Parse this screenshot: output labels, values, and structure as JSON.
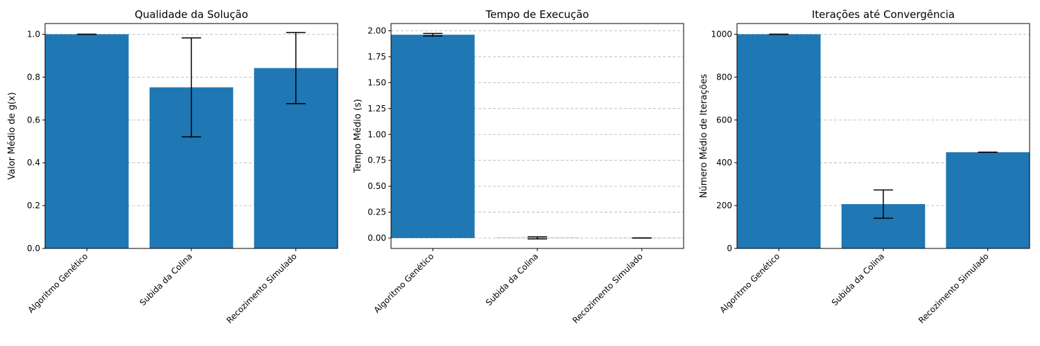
{
  "chart_data": [
    {
      "type": "bar",
      "title": "Qualidade da Solução",
      "xlabel": "",
      "ylabel": "Valor Médio de g(x)",
      "categories": [
        "Algoritmo Genético",
        "Subida da Colina",
        "Recozimento Simulado"
      ],
      "values": [
        1.0,
        0.752,
        0.842
      ],
      "errors": [
        0.0,
        0.231,
        0.166
      ],
      "ylim": [
        0,
        1.05
      ],
      "yticks": [
        "0.0",
        "0.2",
        "0.4",
        "0.6",
        "0.8",
        "1.0"
      ],
      "color": "#1f77b4",
      "grid": "y-dashed"
    },
    {
      "type": "bar",
      "title": "Tempo de Execução",
      "xlabel": "",
      "ylabel": "Tempo Médio (s)",
      "categories": [
        "Algoritmo Genético",
        "Subida da Colina",
        "Recozimento Simulado"
      ],
      "values": [
        1.962,
        0.002,
        0.001
      ],
      "errors": [
        0.012,
        0.01,
        0.0
      ],
      "ylim": [
        -0.1,
        2.07
      ],
      "yticks": [
        "0.00",
        "0.25",
        "0.50",
        "0.75",
        "1.00",
        "1.25",
        "1.50",
        "1.75",
        "2.00"
      ],
      "color": "#1f77b4",
      "grid": "y-dashed"
    },
    {
      "type": "bar",
      "title": "Iterações até Convergência",
      "xlabel": "",
      "ylabel": "Número Médio de Iterações",
      "categories": [
        "Algoritmo Genético",
        "Subida da Colina",
        "Recozimento Simulado"
      ],
      "values": [
        1000,
        207,
        449
      ],
      "errors": [
        0,
        66,
        0
      ],
      "ylim": [
        0,
        1050
      ],
      "yticks": [
        "0",
        "200",
        "400",
        "600",
        "800",
        "1000"
      ],
      "color": "#1f77b4",
      "grid": "y-dashed"
    }
  ]
}
